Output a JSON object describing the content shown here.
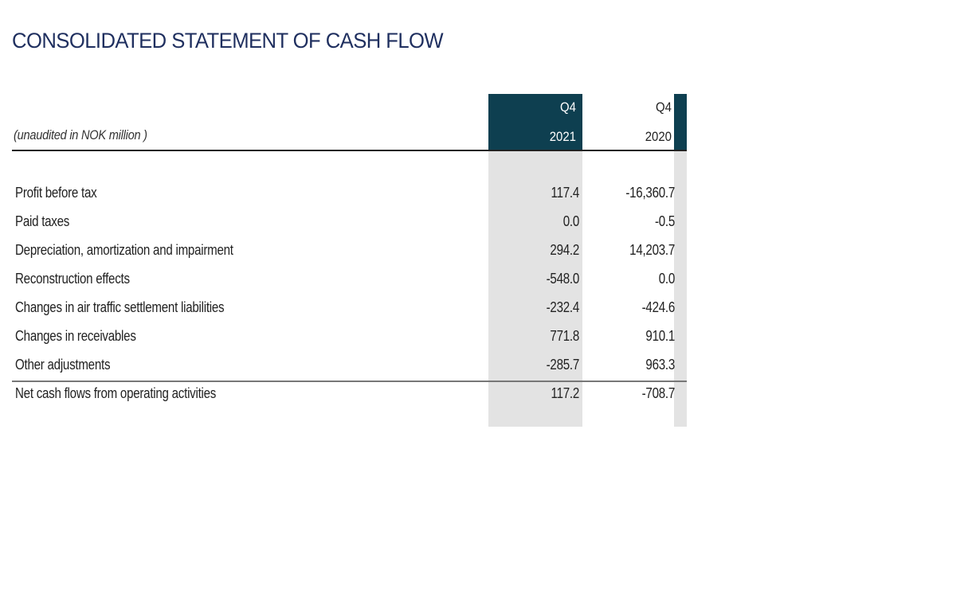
{
  "title": "CONSOLIDATED STATEMENT OF CASH FLOW",
  "subtitle": "(unaudited in NOK million )",
  "columns": [
    {
      "quarter": "Q4",
      "year": "2021"
    },
    {
      "quarter": "Q4",
      "year": "2020"
    }
  ],
  "rows": [
    {
      "label": "Profit before tax",
      "v2021": "117.4",
      "v2020": "-16,360.7"
    },
    {
      "label": "Paid taxes",
      "v2021": "0.0",
      "v2020": "-0.5"
    },
    {
      "label": "Depreciation, amortization and impairment",
      "v2021": "294.2",
      "v2020": "14,203.7"
    },
    {
      "label": "Reconstruction effects",
      "v2021": "-548.0",
      "v2020": "0.0"
    },
    {
      "label": "Changes in air traffic settlement liabilities",
      "v2021": "-232.4",
      "v2020": "-424.6"
    },
    {
      "label": "Changes in receivables",
      "v2021": "771.8",
      "v2020": "910.1"
    },
    {
      "label": "Other adjustments",
      "v2021": "-285.7",
      "v2020": "963.3"
    }
  ],
  "total": {
    "label": "Net cash flows from operating activities",
    "v2021": "117.2",
    "v2020": "-708.7"
  },
  "colors": {
    "title": "#1f2f5f",
    "header_fill": "#0e3f50",
    "column_shade": "#e3e3e3"
  }
}
